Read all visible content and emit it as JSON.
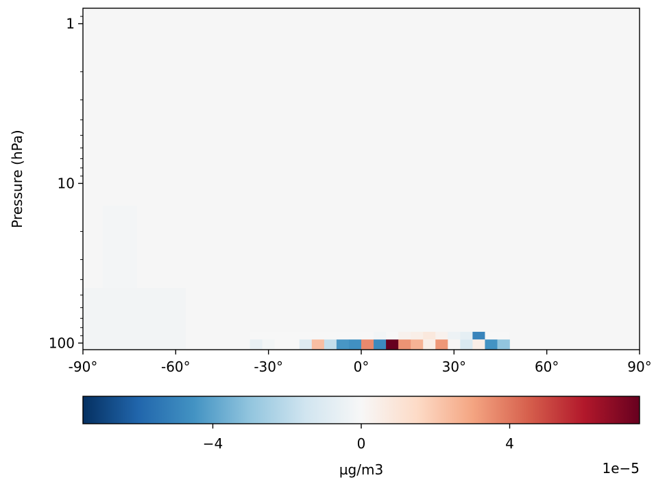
{
  "chart_data": {
    "type": "heatmap",
    "title": "",
    "ylabel": "Pressure (hPa)",
    "xlabel": "",
    "x_axis": {
      "lim": [
        -90,
        90
      ],
      "ticks": [
        -90,
        -60,
        -30,
        0,
        30,
        60,
        90
      ],
      "tick_labels": [
        "-90°",
        "-60°",
        "-30°",
        "0°",
        "30°",
        "60°",
        "90°"
      ]
    },
    "y_axis": {
      "scale": "log",
      "inverted": true,
      "lim": [
        0.8,
        110
      ],
      "ticks": [
        1,
        10,
        100
      ],
      "tick_labels": [
        "1",
        "10",
        "100"
      ]
    },
    "colorbar": {
      "label": "µg/m3",
      "multiplier_label": "1e−5",
      "range": [
        -7.5e-05,
        7.5e-05
      ],
      "ticks": [
        -4e-05,
        0,
        4e-05
      ],
      "tick_labels": [
        "−4",
        "0",
        "4"
      ],
      "colormap": "RdBu_r"
    },
    "lat_edges": [
      -36,
      -32,
      -28,
      -24,
      -20,
      -16,
      -12,
      -8,
      -4,
      0,
      4,
      8,
      12,
      16,
      20,
      24,
      28,
      32,
      36,
      40,
      44,
      48
    ],
    "level_100": [
      -6e-06,
      -2e-06,
      0,
      0,
      -1e-05,
      2.3e-05,
      -1.8e-05,
      -4.4e-05,
      -4.6e-05,
      3.6e-05,
      -4.8e-05,
      7.5e-05,
      3.4e-05,
      2.6e-05,
      5e-06,
      3.3e-05,
      1e-06,
      -1.2e-05,
      5e-06,
      -4.5e-05,
      -3e-05
    ],
    "level_90": [
      0,
      0,
      0,
      0,
      0,
      0,
      0,
      0,
      0,
      0,
      -2e-06,
      0,
      3e-06,
      5e-06,
      8e-06,
      3e-06,
      -4e-06,
      -7e-06,
      -5e-05,
      0,
      0
    ]
  }
}
